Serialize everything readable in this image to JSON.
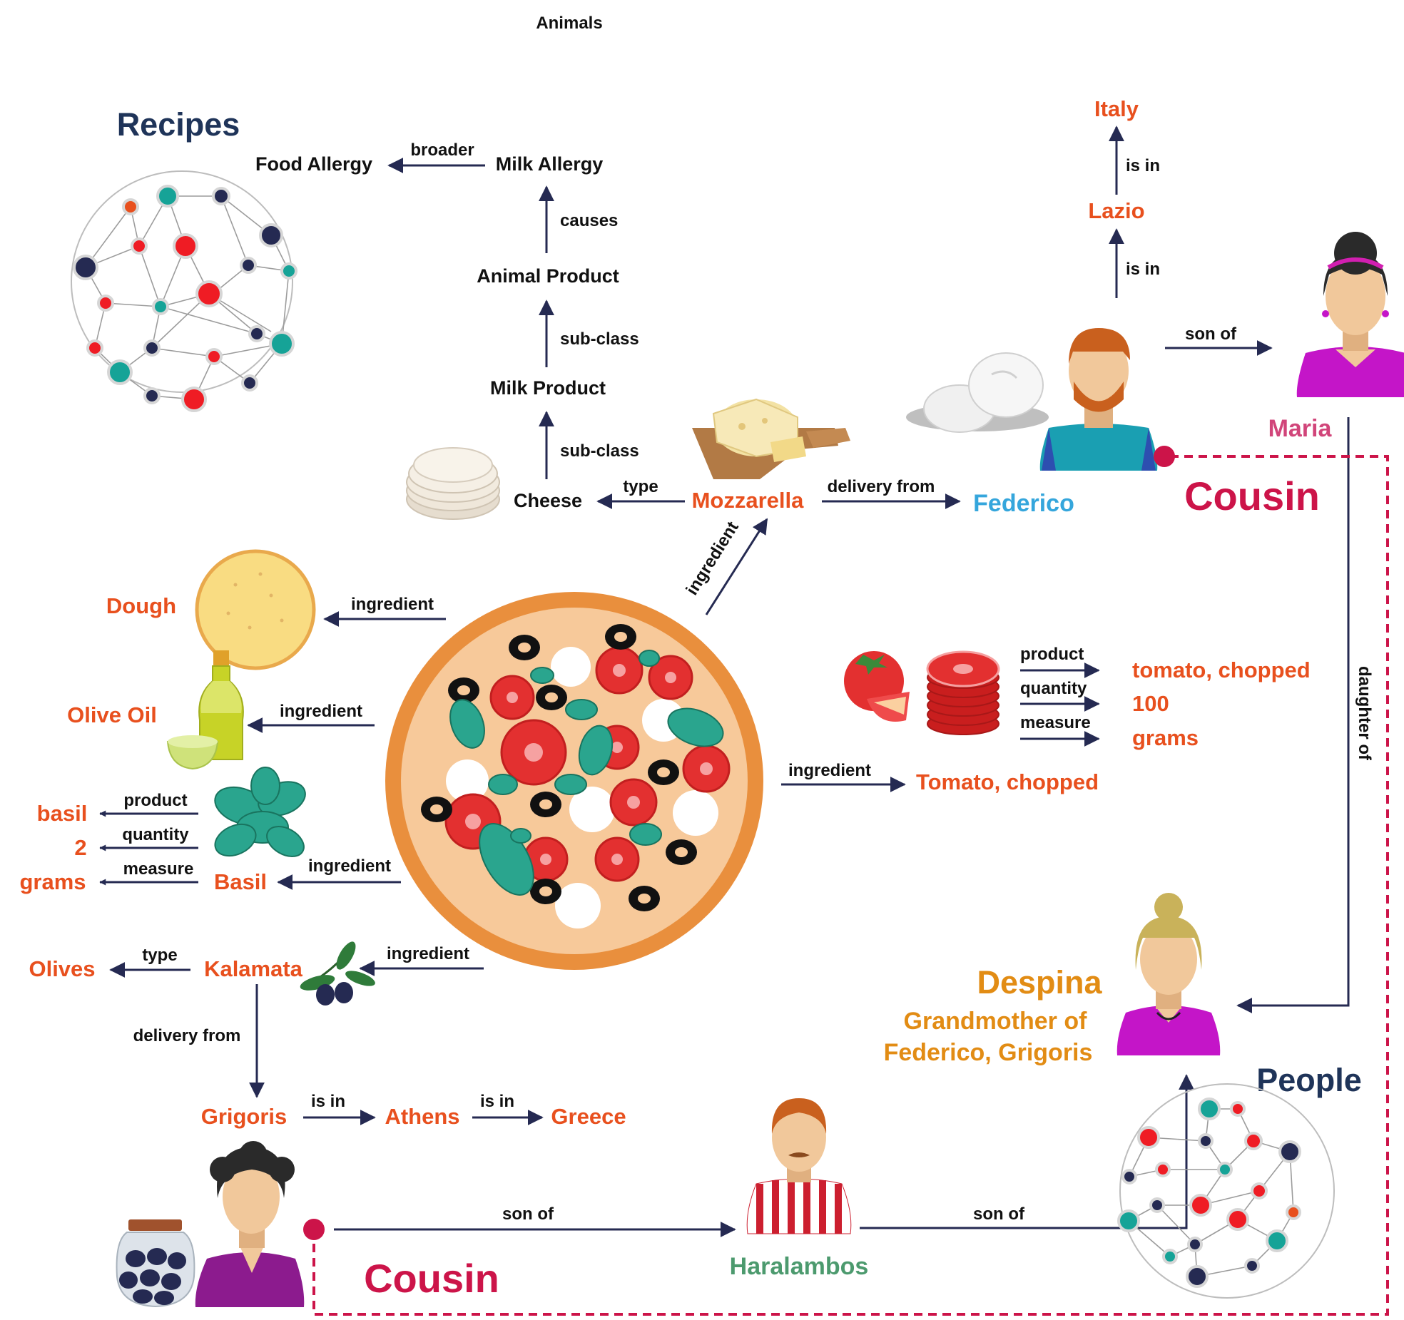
{
  "colors": {
    "orange": "#e8501e",
    "navy": "#1f3459",
    "edge": "#252a52",
    "crimson": "#cc1449",
    "teal": "#16a397",
    "red": "#ef1c24",
    "pink": "#d1457a",
    "sky": "#35a6dc",
    "gold": "#e28c14",
    "green": "#4c9a6e"
  },
  "top_label": "Animals",
  "recipes_heading": "Recipes",
  "people_heading": "People",
  "concepts": {
    "food_allergy": "Food Allergy",
    "milk_allergy": "Milk Allergy",
    "animal_product": "Animal Product",
    "milk_product": "Milk Product",
    "cheese": "Cheese"
  },
  "entities": {
    "mozzarella": "Mozzarella",
    "federico": "Federico",
    "italy": "Italy",
    "lazio": "Lazio",
    "maria": "Maria",
    "dough": "Dough",
    "olive_oil": "Olive Oil",
    "basil_value": "basil",
    "basil_qty": "2",
    "basil_measure": "grams",
    "basil": "Basil",
    "olives": "Olives",
    "kalamata": "Kalamata",
    "grigoris": "Grigoris",
    "athens": "Athens",
    "greece": "Greece",
    "tomato_chopped": "Tomato, chopped",
    "tomato_value": "tomato, chopped",
    "tomato_qty": "100",
    "tomato_measure": "grams",
    "haralambos": "Haralambos",
    "despina": "Despina",
    "despina_line2": "Grandmother of",
    "despina_line3": "Federico, Grigoris"
  },
  "relations": {
    "broader": "broader",
    "causes": "causes",
    "sub_class": "sub-class",
    "type": "type",
    "delivery_from": "delivery from",
    "ingredient": "ingredient",
    "is_in": "is in",
    "son_of": "son of",
    "product": "product",
    "quantity": "quantity",
    "measure": "measure",
    "daughter_of": "daughter of",
    "cousin": "Cousin"
  },
  "icons": [
    "network-graph-icon",
    "pizza-icon",
    "mozzarella-icon",
    "cheese-board-icon",
    "tortilla-stack-icon",
    "dough-icon",
    "olive-oil-icon",
    "basil-leaves-icon",
    "olive-branch-icon",
    "olive-jar-icon",
    "tomato-icon",
    "person-icon"
  ]
}
